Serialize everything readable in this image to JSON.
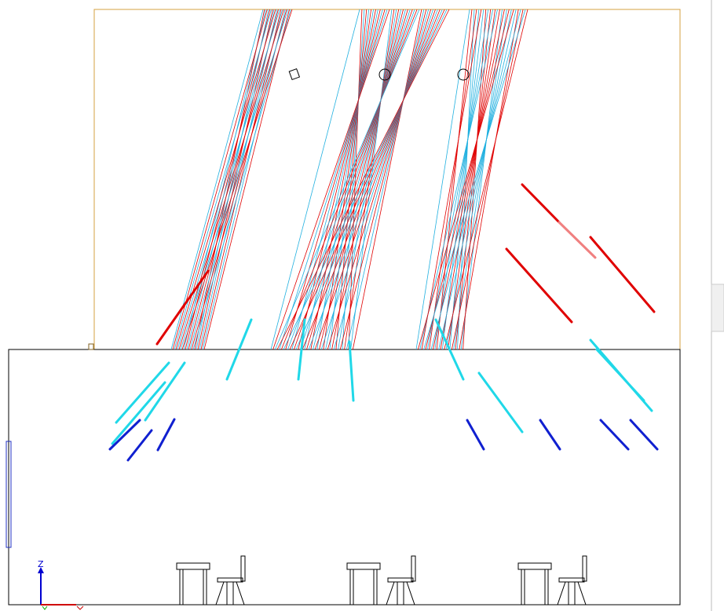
{
  "axis_indicator": {
    "z_label": "Z"
  }
}
